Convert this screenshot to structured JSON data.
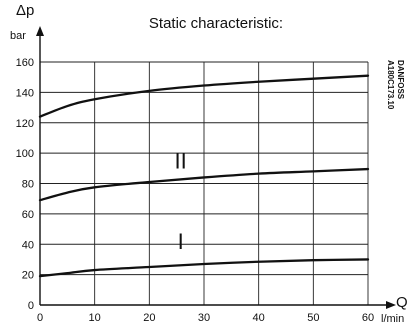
{
  "chart_data": {
    "type": "line",
    "title": "Static characteristic:",
    "y_symbol": "Δp",
    "y_unit": "bar",
    "x_symbol": "Q",
    "x_unit": "l/min",
    "x_ticks": [
      "0",
      "10",
      "20",
      "30",
      "40",
      "50",
      "60"
    ],
    "y_ticks": [
      "0",
      "20",
      "40",
      "60",
      "80",
      "100",
      "120",
      "140",
      "160"
    ],
    "xlim": [
      0,
      60
    ],
    "ylim": [
      0,
      160
    ],
    "grid": true,
    "region_labels": [
      {
        "text": "II",
        "x": 25,
        "y": 95
      },
      {
        "text": "I",
        "x": 25,
        "y": 42
      }
    ],
    "series": [
      {
        "x": [
          0,
          5,
          10,
          20,
          30,
          40,
          50,
          60
        ],
        "values": [
          19,
          21,
          23,
          25,
          27,
          28.5,
          29.5,
          30
        ]
      },
      {
        "x": [
          0,
          5,
          10,
          20,
          30,
          40,
          50,
          60
        ],
        "values": [
          69,
          74,
          77.5,
          81,
          84,
          86.5,
          88,
          89.5
        ]
      },
      {
        "x": [
          0,
          5,
          10,
          20,
          30,
          40,
          50,
          60
        ],
        "values": [
          124,
          131,
          135.5,
          141,
          144.5,
          147,
          149,
          151
        ]
      }
    ]
  },
  "side_text": [
    "DANFOSS",
    "A180C173.10"
  ]
}
